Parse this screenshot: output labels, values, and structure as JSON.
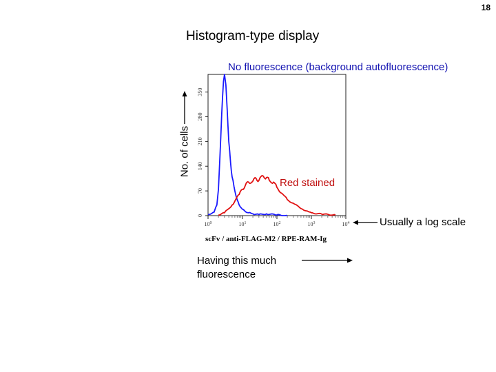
{
  "slide": {
    "number": "18",
    "title": "Histogram-type display",
    "annotations": {
      "no_fluorescence": "No fluorescence (background autofluorescence)",
      "red_stained": "Red stained",
      "log_scale": "Usually a log scale",
      "having_fluorescence": "Having this much fluorescence"
    }
  },
  "chart_data": {
    "type": "line",
    "xlabel": "scFv / anti-FLAG-M2 / RPE-RAM-Ig",
    "ylabel": "No. of cells",
    "x_scale": "log",
    "xlim": [
      1,
      10000
    ],
    "ylim": [
      0,
      400
    ],
    "x_ticks": [
      "10^0",
      "10^1",
      "10^2",
      "10^3",
      "10^4"
    ],
    "y_ticks": [
      "0",
      "70",
      "140",
      "210",
      "280",
      "350"
    ],
    "series": [
      {
        "color": "#1a1aff",
        "x": [
          1.0,
          1.5,
          1.8,
          2.0,
          2.2,
          2.5,
          2.8,
          3.0,
          3.3,
          3.6,
          4.0,
          4.5,
          5.0,
          6.0,
          7.0,
          8.0,
          10.0,
          12.0,
          15.0,
          20.0,
          30.0,
          50.0,
          100.0,
          200.0
        ],
        "y": [
          3,
          10,
          30,
          75,
          160,
          290,
          380,
          400,
          370,
          300,
          210,
          150,
          110,
          70,
          45,
          30,
          18,
          12,
          8,
          5,
          3,
          5,
          2,
          0
        ]
      },
      {
        "color": "#e01010",
        "x": [
          2.0,
          3.0,
          5.0,
          8.0,
          10.0,
          12.0,
          15.0,
          20.0,
          25.0,
          30.0,
          40.0,
          50.0,
          60.0,
          80.0,
          100.0,
          150.0,
          200.0,
          300.0,
          500.0,
          800.0,
          1000.0,
          2000.0,
          5000.0
        ],
        "y": [
          2,
          8,
          30,
          60,
          75,
          85,
          95,
          98,
          105,
          100,
          112,
          108,
          100,
          95,
          80,
          60,
          45,
          35,
          20,
          12,
          8,
          4,
          2
        ]
      }
    ],
    "grid": false
  }
}
